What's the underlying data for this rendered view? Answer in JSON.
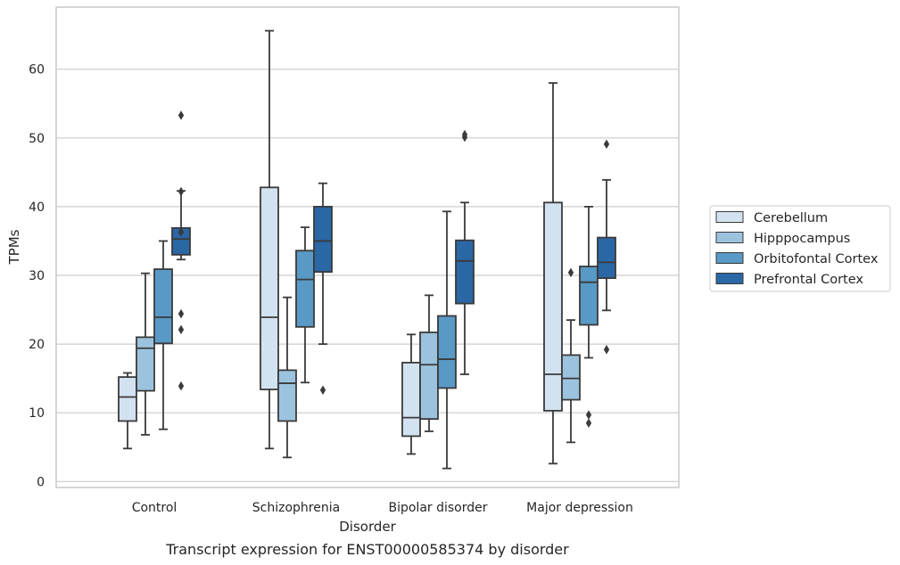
{
  "caption": "Transcript expression for ENST00000585374 by disorder",
  "chart_data": {
    "type": "box",
    "xlabel": "Disorder",
    "ylabel": "TPMs",
    "ylim": [
      -1,
      69
    ],
    "yticks": [
      0,
      10,
      20,
      30,
      40,
      50,
      60
    ],
    "grid": "horizontal",
    "legend_position": "right",
    "categories": [
      "Control",
      "Schizophrenia",
      "Bipolar disorder",
      "Major depression"
    ],
    "series": [
      {
        "name": "Cerebellum",
        "color": "#d3e2f1",
        "boxes": [
          {
            "whislo": 4.8,
            "q1": 8.8,
            "med": 12.3,
            "q3": 15.2,
            "whishi": 15.8,
            "fliers": []
          },
          {
            "whislo": 4.8,
            "q1": 13.4,
            "med": 23.9,
            "q3": 42.8,
            "whishi": 65.6,
            "fliers": []
          },
          {
            "whislo": 4.0,
            "q1": 6.6,
            "med": 9.3,
            "q3": 17.3,
            "whishi": 21.4,
            "fliers": []
          },
          {
            "whislo": 2.6,
            "q1": 10.3,
            "med": 15.6,
            "q3": 40.6,
            "whishi": 58.0,
            "fliers": []
          }
        ]
      },
      {
        "name": "Hipppocampus",
        "color": "#9cc3de",
        "boxes": [
          {
            "whislo": 6.8,
            "q1": 13.2,
            "med": 19.4,
            "q3": 21.0,
            "whishi": 30.3,
            "fliers": []
          },
          {
            "whislo": 3.5,
            "q1": 8.8,
            "med": 14.3,
            "q3": 16.2,
            "whishi": 26.8,
            "fliers": []
          },
          {
            "whislo": 7.3,
            "q1": 9.1,
            "med": 17.0,
            "q3": 21.7,
            "whishi": 27.1,
            "fliers": []
          },
          {
            "whislo": 5.7,
            "q1": 11.9,
            "med": 15.0,
            "q3": 18.4,
            "whishi": 23.5,
            "fliers": [
              30.4
            ]
          }
        ]
      },
      {
        "name": "Orbitofontal Cortex",
        "color": "#5899c6",
        "boxes": [
          {
            "whislo": 7.6,
            "q1": 20.1,
            "med": 23.9,
            "q3": 30.9,
            "whishi": 35.0,
            "fliers": []
          },
          {
            "whislo": 14.4,
            "q1": 22.5,
            "med": 29.4,
            "q3": 33.6,
            "whishi": 37.0,
            "fliers": []
          },
          {
            "whislo": 1.9,
            "q1": 13.6,
            "med": 17.8,
            "q3": 24.1,
            "whishi": 39.3,
            "fliers": []
          },
          {
            "whislo": 18.0,
            "q1": 22.8,
            "med": 29.0,
            "q3": 31.3,
            "whishi": 40.0,
            "fliers": [
              9.7,
              8.5
            ]
          }
        ]
      },
      {
        "name": "Prefrontal Cortex",
        "color": "#2a67a5",
        "boxes": [
          {
            "whislo": 32.3,
            "q1": 33.0,
            "med": 35.3,
            "q3": 36.9,
            "whishi": 42.3,
            "fliers": [
              53.3,
              42.2,
              36.3,
              24.4,
              22.1,
              13.9
            ]
          },
          {
            "whislo": 20.0,
            "q1": 30.5,
            "med": 35.0,
            "q3": 40.0,
            "whishi": 43.4,
            "fliers": [
              13.3
            ]
          },
          {
            "whislo": 15.6,
            "q1": 25.9,
            "med": 32.1,
            "q3": 35.1,
            "whishi": 40.6,
            "fliers": [
              50.1,
              50.5
            ]
          },
          {
            "whislo": 24.9,
            "q1": 29.6,
            "med": 31.9,
            "q3": 35.5,
            "whishi": 43.9,
            "fliers": [
              49.1,
              19.2
            ]
          }
        ]
      }
    ]
  }
}
